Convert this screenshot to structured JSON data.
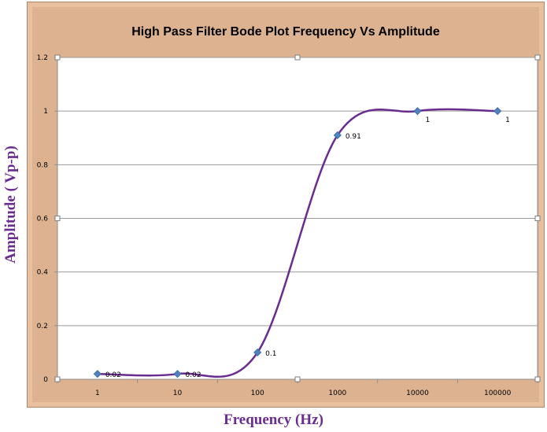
{
  "chart_data": {
    "type": "line",
    "title": "High Pass Filter Bode Plot Frequency Vs Amplitude",
    "xlabel": "Frequency (Hz)",
    "ylabel": "Amplitude ( Vp-p)",
    "x_scale": "categorical-log",
    "categories": [
      "1",
      "10",
      "100",
      "1000",
      "10000",
      "100000"
    ],
    "values": [
      0.02,
      0.02,
      0.1,
      0.91,
      1,
      1
    ],
    "data_labels": [
      "0.02",
      "0.02",
      "0.1",
      "0.91",
      "1",
      "1"
    ],
    "ylim": [
      0,
      1.2
    ],
    "yticks": [
      "0",
      "0.2",
      "0.4",
      "0.6",
      "0.8",
      "1",
      "1.2"
    ],
    "grid": true,
    "legend": "none",
    "colors": {
      "line": "#6a2c8e",
      "marker": "#4f81bd",
      "frame": "#ddb290",
      "axis_title": "#6a2c8e"
    }
  }
}
